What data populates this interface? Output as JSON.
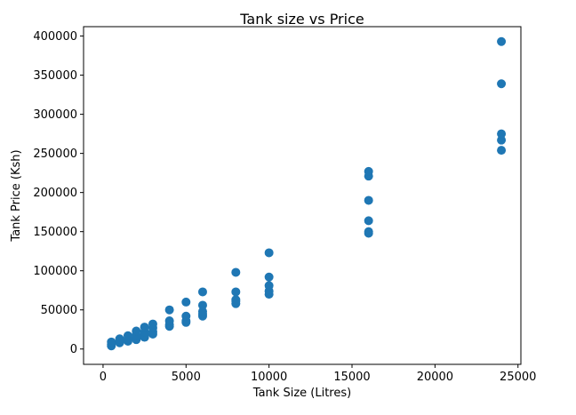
{
  "chart_data": {
    "type": "scatter",
    "title": "Tank size vs Price",
    "xlabel": "Tank Size (Litres)",
    "ylabel": "Tank Price (Ksh)",
    "xlim": [
      -1175,
      25175
    ],
    "ylim": [
      -19600,
      412000
    ],
    "xticks": [
      0,
      5000,
      10000,
      15000,
      20000,
      25000
    ],
    "yticks": [
      0,
      50000,
      100000,
      150000,
      200000,
      250000,
      300000,
      350000,
      400000
    ],
    "grid": false,
    "marker_color": "#1f77b4",
    "points": [
      {
        "x": 500,
        "y": 4000
      },
      {
        "x": 500,
        "y": 6000
      },
      {
        "x": 500,
        "y": 9000
      },
      {
        "x": 1000,
        "y": 8000
      },
      {
        "x": 1000,
        "y": 10000
      },
      {
        "x": 1000,
        "y": 13000
      },
      {
        "x": 1500,
        "y": 10000
      },
      {
        "x": 1500,
        "y": 13000
      },
      {
        "x": 1500,
        "y": 17000
      },
      {
        "x": 2000,
        "y": 12000
      },
      {
        "x": 2000,
        "y": 14000
      },
      {
        "x": 2000,
        "y": 18000
      },
      {
        "x": 2000,
        "y": 23000
      },
      {
        "x": 2500,
        "y": 15000
      },
      {
        "x": 2500,
        "y": 18000
      },
      {
        "x": 2500,
        "y": 22000
      },
      {
        "x": 2500,
        "y": 28000
      },
      {
        "x": 3000,
        "y": 19000
      },
      {
        "x": 3000,
        "y": 22000
      },
      {
        "x": 3000,
        "y": 27000
      },
      {
        "x": 3000,
        "y": 32000
      },
      {
        "x": 4000,
        "y": 29000
      },
      {
        "x": 4000,
        "y": 31000
      },
      {
        "x": 4000,
        "y": 36000
      },
      {
        "x": 4000,
        "y": 50000
      },
      {
        "x": 5000,
        "y": 34000
      },
      {
        "x": 5000,
        "y": 36000
      },
      {
        "x": 5000,
        "y": 42000
      },
      {
        "x": 5000,
        "y": 60000
      },
      {
        "x": 6000,
        "y": 42000
      },
      {
        "x": 6000,
        "y": 45000
      },
      {
        "x": 6000,
        "y": 48000
      },
      {
        "x": 6000,
        "y": 56000
      },
      {
        "x": 6000,
        "y": 73000
      },
      {
        "x": 8000,
        "y": 58000
      },
      {
        "x": 8000,
        "y": 61000
      },
      {
        "x": 8000,
        "y": 63000
      },
      {
        "x": 8000,
        "y": 73000
      },
      {
        "x": 8000,
        "y": 98000
      },
      {
        "x": 10000,
        "y": 70000
      },
      {
        "x": 10000,
        "y": 74000
      },
      {
        "x": 10000,
        "y": 81000
      },
      {
        "x": 10000,
        "y": 92000
      },
      {
        "x": 10000,
        "y": 123000
      },
      {
        "x": 16000,
        "y": 148000
      },
      {
        "x": 16000,
        "y": 150000
      },
      {
        "x": 16000,
        "y": 164000
      },
      {
        "x": 16000,
        "y": 190000
      },
      {
        "x": 16000,
        "y": 221000
      },
      {
        "x": 16000,
        "y": 227000
      },
      {
        "x": 24000,
        "y": 254000
      },
      {
        "x": 24000,
        "y": 267000
      },
      {
        "x": 24000,
        "y": 275000
      },
      {
        "x": 24000,
        "y": 339000
      },
      {
        "x": 24000,
        "y": 393000
      }
    ]
  }
}
